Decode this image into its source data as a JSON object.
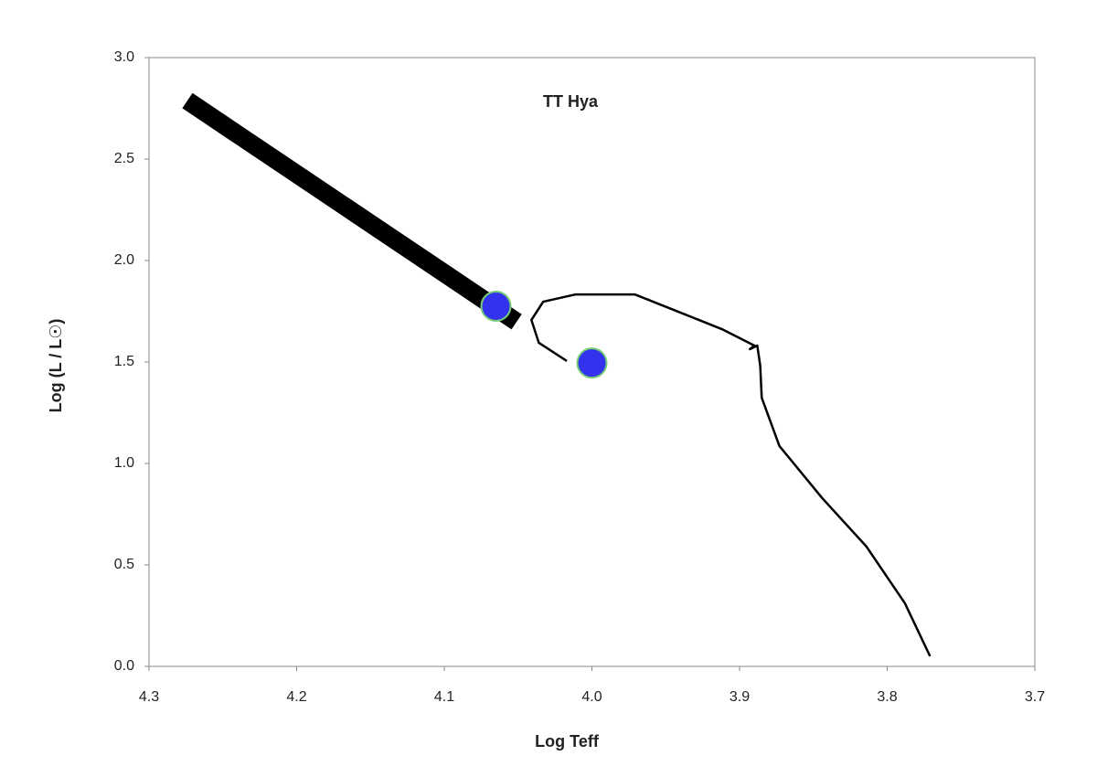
{
  "chart_data": {
    "type": "line",
    "title": "TT Hya",
    "x_label": "Log Teff",
    "y_label": "Log (L / L☉)",
    "xlim": [
      4.3,
      3.7
    ],
    "ylim": [
      0,
      3
    ],
    "xticks": [
      4.3,
      4.2,
      4.1,
      {
        "value": 4.0,
        "label": "4.0"
      },
      3.9,
      3.8,
      3.7
    ],
    "yticks": [
      {
        "value": 0,
        "label": "0.0"
      },
      0.5,
      {
        "value": 1,
        "label": "1.0"
      },
      1.5,
      {
        "value": 2,
        "label": "2.0"
      },
      2.5,
      {
        "value": 3,
        "label": "3.0"
      }
    ],
    "series": [
      {
        "color": "#000000",
        "x": [
          4.274,
          4.051
        ],
        "values": [
          2.788,
          1.698
        ]
      },
      {
        "color": "#000000",
        "x": [
          4.017,
          4.036,
          4.041,
          4.033,
          4.011,
          3.971,
          3.943,
          3.912,
          3.89,
          3.893,
          3.888,
          3.886,
          3.885,
          3.873,
          3.844,
          3.814,
          3.788,
          3.771
        ],
        "values": [
          1.505,
          1.595,
          1.707,
          1.797,
          1.833,
          1.833,
          1.752,
          1.662,
          1.581,
          1.563,
          1.581,
          1.482,
          1.324,
          1.086,
          0.829,
          0.59,
          0.311,
          0.05
        ]
      }
    ],
    "points": {
      "color": "#3333ee",
      "x": [
        4.065,
        4.0
      ],
      "values": [
        1.775,
        1.495
      ]
    }
  }
}
